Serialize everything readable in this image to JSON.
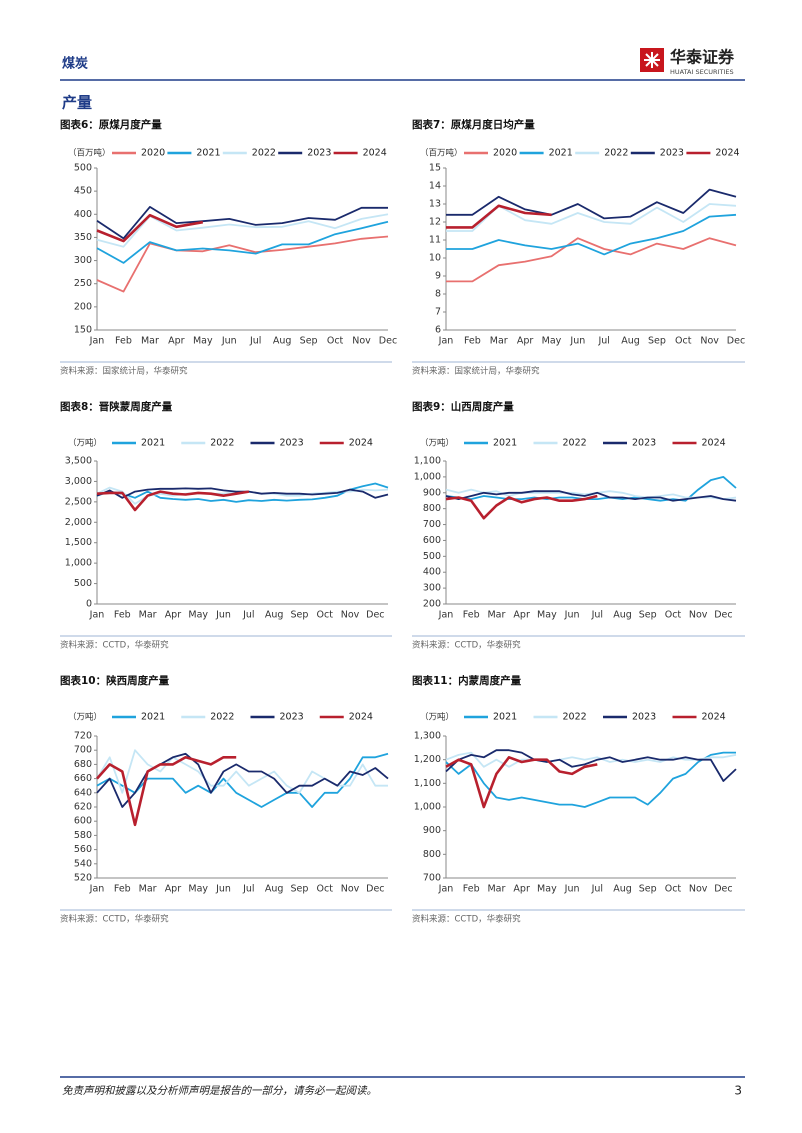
{
  "header": {
    "category": "煤炭",
    "brand": "华泰证券",
    "brand_en": "HUATAI SECURITIES"
  },
  "section_title": "产量",
  "chart_data": [
    {
      "type": "line",
      "title": "图表6：原煤月度产量",
      "unit": "（百万吨）",
      "categories": [
        "Jan",
        "Feb",
        "Mar",
        "Apr",
        "May",
        "Jun",
        "Jul",
        "Aug",
        "Sep",
        "Oct",
        "Nov",
        "Dec"
      ],
      "series": [
        {
          "name": "2020",
          "color": "#e8706f",
          "values": [
            258,
            233,
            337,
            322,
            320,
            333,
            318,
            323,
            330,
            337,
            347,
            352
          ]
        },
        {
          "name": "2021",
          "color": "#1fa3dd",
          "values": [
            327,
            295,
            340,
            322,
            326,
            322,
            315,
            335,
            335,
            357,
            370,
            384
          ]
        },
        {
          "name": "2022",
          "color": "#c5e6f5",
          "values": [
            345,
            330,
            396,
            365,
            371,
            378,
            372,
            373,
            385,
            370,
            390,
            400
          ]
        },
        {
          "name": "2023",
          "color": "#1a2a6c",
          "values": [
            386,
            348,
            416,
            381,
            385,
            390,
            377,
            381,
            392,
            388,
            414,
            414
          ]
        },
        {
          "name": "2024",
          "color": "#b8202e",
          "values": [
            365,
            342,
            398,
            373,
            383,
            null,
            null,
            null,
            null,
            null,
            null,
            null
          ]
        }
      ],
      "ylim": [
        150,
        500
      ],
      "yticks": [
        150,
        200,
        250,
        300,
        350,
        400,
        450,
        500
      ],
      "source": "资料来源：国家统计局，华泰研究"
    },
    {
      "type": "line",
      "title": "图表7：原煤月度日均产量",
      "unit": "（百万吨）",
      "categories": [
        "Jan",
        "Feb",
        "Mar",
        "Apr",
        "May",
        "Jun",
        "Jul",
        "Aug",
        "Sep",
        "Oct",
        "Nov",
        "Dec"
      ],
      "series": [
        {
          "name": "2020",
          "color": "#e8706f",
          "values": [
            8.7,
            8.7,
            9.6,
            9.8,
            10.1,
            11.1,
            10.5,
            10.2,
            10.8,
            10.5,
            11.1,
            10.7
          ]
        },
        {
          "name": "2021",
          "color": "#1fa3dd",
          "values": [
            10.5,
            10.5,
            11.0,
            10.7,
            10.5,
            10.8,
            10.2,
            10.8,
            11.1,
            11.5,
            12.3,
            12.4
          ]
        },
        {
          "name": "2022",
          "color": "#c5e6f5",
          "values": [
            11.5,
            11.5,
            12.9,
            12.1,
            11.9,
            12.5,
            12.0,
            11.9,
            12.8,
            12.0,
            13.0,
            12.9
          ]
        },
        {
          "name": "2023",
          "color": "#1a2a6c",
          "values": [
            12.4,
            12.4,
            13.4,
            12.7,
            12.4,
            13.0,
            12.2,
            12.3,
            13.1,
            12.5,
            13.8,
            13.4
          ]
        },
        {
          "name": "2024",
          "color": "#b8202e",
          "values": [
            11.7,
            11.7,
            12.9,
            12.5,
            12.4,
            null,
            null,
            null,
            null,
            null,
            null,
            null
          ]
        }
      ],
      "ylim": [
        6,
        15
      ],
      "yticks": [
        6,
        7,
        8,
        9,
        10,
        11,
        12,
        13,
        14,
        15
      ],
      "source": "资料来源：国家统计局，华泰研究"
    },
    {
      "type": "line",
      "title": "图表8：晋陕蒙周度产量",
      "unit": "（万吨）",
      "categories": [
        "Jan",
        null,
        "Feb",
        null,
        "Mar",
        null,
        "Apr",
        null,
        "May",
        null,
        "Jun",
        null,
        "Jul",
        null,
        "Aug",
        null,
        "Sep",
        null,
        "Oct",
        null,
        "Nov",
        null,
        "Dec",
        null
      ],
      "series": [
        {
          "name": "2021",
          "color": "#1fa3dd",
          "values": [
            2650,
            2750,
            2700,
            2600,
            2750,
            2600,
            2570,
            2550,
            2570,
            2520,
            2550,
            2500,
            2540,
            2520,
            2550,
            2530,
            2550,
            2560,
            2600,
            2650,
            2800,
            2880,
            2950,
            2850
          ]
        },
        {
          "name": "2022",
          "color": "#c5e6f5",
          "values": [
            2700,
            2850,
            2750,
            2450,
            2650,
            2700,
            2650,
            2700,
            2720,
            2700,
            2700,
            2750,
            2750,
            2700,
            2700,
            2650,
            2650,
            2700,
            2720,
            2750,
            2750,
            2800,
            2780,
            2800
          ]
        },
        {
          "name": "2023",
          "color": "#1a2a6c",
          "values": [
            2650,
            2780,
            2600,
            2750,
            2800,
            2820,
            2820,
            2830,
            2820,
            2830,
            2780,
            2750,
            2750,
            2700,
            2720,
            2700,
            2700,
            2680,
            2700,
            2720,
            2800,
            2750,
            2600,
            2680
          ]
        },
        {
          "name": "2024",
          "color": "#b8202e",
          "values": [
            2700,
            2720,
            2720,
            2300,
            2650,
            2750,
            2700,
            2680,
            2720,
            2700,
            2650,
            2700,
            2750,
            null,
            null,
            null,
            null,
            null,
            null,
            null,
            null,
            null,
            null,
            null
          ]
        }
      ],
      "ylim": [
        0,
        3500
      ],
      "yticks": [
        0,
        500,
        {
          "value": 1000,
          "label": "1,000"
        },
        {
          "value": 1500,
          "label": "1,500"
        },
        {
          "value": 2000,
          "label": "2,000"
        },
        {
          "value": 2500,
          "label": "2,500"
        },
        {
          "value": 3000,
          "label": "3,000"
        },
        {
          "value": 3500,
          "label": "3,500"
        }
      ],
      "source": "资料来源：CCTD，华泰研究"
    },
    {
      "type": "line",
      "title": "图表9：山西周度产量",
      "unit": "（万吨）",
      "categories": [
        "Jan",
        null,
        "Feb",
        null,
        "Mar",
        null,
        "Apr",
        null,
        "May",
        null,
        "Jun",
        null,
        "Jul",
        null,
        "Aug",
        null,
        "Sep",
        null,
        "Oct",
        null,
        "Nov",
        null,
        "Dec",
        null
      ],
      "series": [
        {
          "name": "2021",
          "color": "#1fa3dd",
          "values": [
            880,
            870,
            860,
            880,
            870,
            860,
            860,
            870,
            860,
            870,
            870,
            860,
            860,
            870,
            860,
            870,
            860,
            850,
            860,
            850,
            920,
            980,
            1000,
            930
          ]
        },
        {
          "name": "2022",
          "color": "#c5e6f5",
          "values": [
            920,
            900,
            920,
            900,
            910,
            880,
            900,
            900,
            900,
            900,
            900,
            890,
            900,
            910,
            900,
            880,
            870,
            880,
            890,
            870,
            870,
            870,
            860,
            870
          ]
        },
        {
          "name": "2023",
          "color": "#1a2a6c",
          "values": [
            880,
            860,
            880,
            900,
            890,
            900,
            900,
            910,
            910,
            910,
            890,
            880,
            900,
            870,
            870,
            860,
            870,
            870,
            850,
            860,
            870,
            880,
            860,
            850
          ]
        },
        {
          "name": "2024",
          "color": "#b8202e",
          "values": [
            860,
            870,
            850,
            740,
            820,
            870,
            840,
            860,
            870,
            850,
            850,
            860,
            880,
            null,
            null,
            null,
            null,
            null,
            null,
            null,
            null,
            null,
            null,
            null
          ]
        }
      ],
      "ylim": [
        200,
        1100
      ],
      "yticks": [
        200,
        300,
        400,
        500,
        600,
        700,
        800,
        900,
        {
          "value": 1000,
          "label": "1,000"
        },
        {
          "value": 1100,
          "label": "1,100"
        }
      ],
      "source": "资料来源：CCTD，华泰研究"
    },
    {
      "type": "line",
      "title": "图表10：陕西周度产量",
      "unit": "（万吨）",
      "categories": [
        "Jan",
        null,
        "Feb",
        null,
        "Mar",
        null,
        "Apr",
        null,
        "May",
        null,
        "Jun",
        null,
        "Jul",
        null,
        "Aug",
        null,
        "Sep",
        null,
        "Oct",
        null,
        "Nov",
        null,
        "Dec",
        null
      ],
      "series": [
        {
          "name": "2021",
          "color": "#1fa3dd",
          "values": [
            650,
            660,
            650,
            640,
            660,
            660,
            660,
            640,
            650,
            640,
            660,
            640,
            630,
            620,
            630,
            640,
            640,
            620,
            640,
            640,
            660,
            690,
            690,
            695
          ]
        },
        {
          "name": "2022",
          "color": "#c5e6f5",
          "values": [
            660,
            690,
            640,
            700,
            680,
            670,
            690,
            680,
            670,
            650,
            650,
            670,
            650,
            660,
            670,
            650,
            640,
            670,
            660,
            650,
            650,
            680,
            650,
            650
          ]
        },
        {
          "name": "2023",
          "color": "#1a2a6c",
          "values": [
            640,
            660,
            620,
            640,
            670,
            680,
            690,
            695,
            680,
            640,
            670,
            680,
            670,
            670,
            660,
            640,
            650,
            650,
            660,
            650,
            670,
            665,
            675,
            660
          ]
        },
        {
          "name": "2024",
          "color": "#b8202e",
          "values": [
            660,
            680,
            670,
            595,
            670,
            680,
            680,
            690,
            685,
            680,
            690,
            690,
            null,
            null,
            null,
            null,
            null,
            null,
            null,
            null,
            null,
            null,
            null,
            null
          ]
        }
      ],
      "ylim": [
        520,
        720
      ],
      "yticks": [
        520,
        540,
        560,
        580,
        600,
        620,
        640,
        660,
        680,
        700,
        720
      ],
      "source": "资料来源：CCTD，华泰研究"
    },
    {
      "type": "line",
      "title": "图表11：内蒙周度产量",
      "unit": "（万吨）",
      "categories": [
        "Jan",
        null,
        "Feb",
        null,
        "Mar",
        null,
        "Apr",
        null,
        "May",
        null,
        "Jun",
        null,
        "Jul",
        null,
        "Aug",
        null,
        "Sep",
        null,
        "Oct",
        null,
        "Nov",
        null,
        "Dec",
        null
      ],
      "series": [
        {
          "name": "2021",
          "color": "#1fa3dd",
          "values": [
            1190,
            1140,
            1180,
            1100,
            1040,
            1030,
            1040,
            1030,
            1020,
            1010,
            1010,
            1000,
            1020,
            1040,
            1040,
            1040,
            1010,
            1060,
            1120,
            1140,
            1190,
            1220,
            1230,
            1230
          ]
        },
        {
          "name": "2022",
          "color": "#c5e6f5",
          "values": [
            1200,
            1220,
            1230,
            1170,
            1200,
            1170,
            1200,
            1200,
            1190,
            1200,
            1210,
            1200,
            1210,
            1190,
            1200,
            1190,
            1200,
            1190,
            1210,
            1200,
            1200,
            1210,
            1210,
            1220
          ]
        },
        {
          "name": "2023",
          "color": "#1a2a6c",
          "values": [
            1150,
            1200,
            1220,
            1210,
            1240,
            1240,
            1230,
            1200,
            1190,
            1200,
            1170,
            1180,
            1200,
            1210,
            1190,
            1200,
            1210,
            1200,
            1200,
            1210,
            1200,
            1200,
            1110,
            1160
          ]
        },
        {
          "name": "2024",
          "color": "#b8202e",
          "values": [
            1170,
            1200,
            1180,
            1000,
            1140,
            1210,
            1190,
            1200,
            1200,
            1150,
            1140,
            1170,
            1180,
            null,
            null,
            null,
            null,
            null,
            null,
            null,
            null,
            null,
            null,
            null
          ]
        }
      ],
      "ylim": [
        700,
        1300
      ],
      "yticks": [
        700,
        800,
        900,
        {
          "value": 1000,
          "label": "1,000"
        },
        {
          "value": 1100,
          "label": "1,100"
        },
        {
          "value": 1200,
          "label": "1,200"
        },
        {
          "value": 1300,
          "label": "1,300"
        }
      ],
      "source": "资料来源：CCTD，华泰研究"
    }
  ],
  "footer": {
    "disclaimer": "免责声明和披露以及分析师声明是报告的一部分，请务必一起阅读。",
    "page": "3"
  }
}
